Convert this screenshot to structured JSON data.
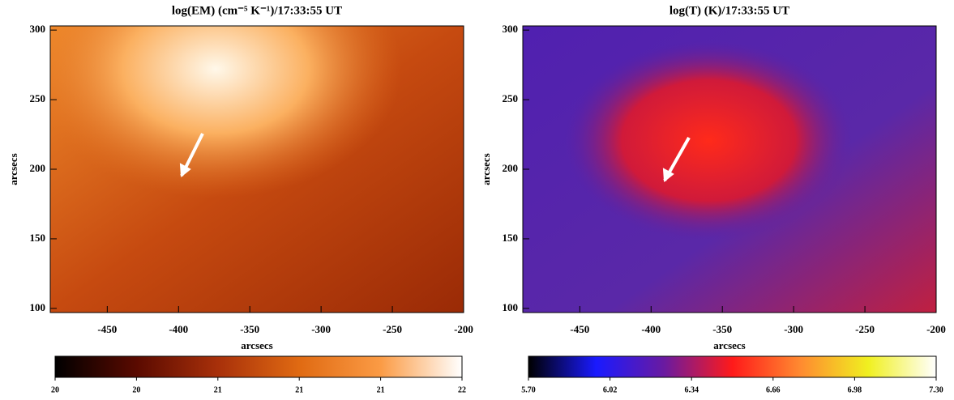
{
  "chart_data": [
    {
      "type": "image",
      "title": "log(EM) (cm⁻⁵ K⁻¹)/17:33:55 UT",
      "xlabel": "arcsecs",
      "ylabel": "arcsecs",
      "xlim": [
        -490,
        -200
      ],
      "xticks": [
        -450,
        -400,
        -350,
        -300,
        -250,
        -200
      ],
      "ylim": [
        97,
        303
      ],
      "yticks": [
        100,
        150,
        200,
        250,
        300
      ],
      "colorbar": {
        "lim": [
          20,
          21.5
        ],
        "colormap": [
          "#000000",
          "#5a0a00",
          "#a8300a",
          "#e06a12",
          "#fb9b45",
          "#ffffff"
        ],
        "ticks": [
          20,
          {
            "value": 20.3,
            "label": "20"
          },
          {
            "value": 20.6,
            "label": "21"
          },
          {
            "value": 20.9,
            "label": "21"
          },
          {
            "value": 21.2,
            "label": "21"
          },
          {
            "value": 21.5,
            "label": "22"
          }
        ]
      }
    },
    {
      "type": "image",
      "title": "log(T) (K)/17:33:55 UT",
      "xlabel": "arcsecs",
      "ylabel": "arcsecs",
      "xlim": [
        -490,
        -200
      ],
      "xticks": [
        -450,
        -400,
        -350,
        -300,
        -250,
        -200
      ],
      "ylim": [
        97,
        303
      ],
      "yticks": [
        100,
        150,
        200,
        250,
        300
      ],
      "colorbar": {
        "lim": [
          5.7,
          7.3
        ],
        "colormap": [
          "#000000",
          "#1a1aff",
          "#6a1aa0",
          "#ff1a1a",
          "#ff8a30",
          "#f0f020",
          "#ffffff"
        ],
        "ticks": [
          {
            "value": 5.7,
            "label": "5.70"
          },
          {
            "value": 6.02,
            "label": "6.02"
          },
          {
            "value": 6.34,
            "label": "6.34"
          },
          {
            "value": 6.66,
            "label": "6.66"
          },
          {
            "value": 6.98,
            "label": "6.98"
          },
          {
            "value": 7.3,
            "label": "7.30"
          }
        ]
      }
    }
  ]
}
